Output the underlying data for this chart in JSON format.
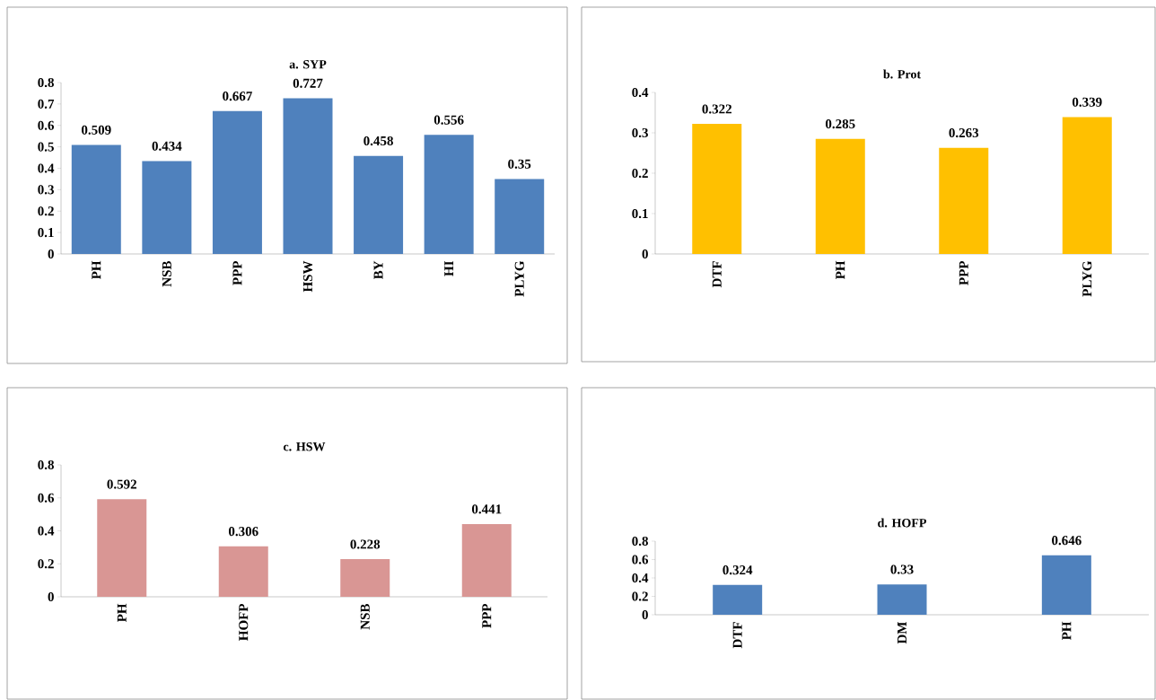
{
  "chart_data": [
    {
      "type": "bar",
      "title": "a. SYP",
      "categories": [
        "PH",
        "NSB",
        "PPP",
        "HSW",
        "BY",
        "HI",
        "PLYG"
      ],
      "values": [
        0.509,
        0.434,
        0.667,
        0.727,
        0.458,
        0.556,
        0.35
      ],
      "color": "#4f81bd",
      "ylim": [
        0,
        0.8
      ],
      "yticks": [
        0,
        0.1,
        0.2,
        0.3,
        0.4,
        0.5,
        0.6,
        0.7,
        0.8
      ],
      "data_labels": true
    },
    {
      "type": "bar",
      "title": "b. Prot",
      "categories": [
        "DTF",
        "PH",
        "PPP",
        "PLYG"
      ],
      "values": [
        0.322,
        0.285,
        0.263,
        0.339
      ],
      "color": "#ffc000",
      "ylim": [
        0,
        0.4
      ],
      "yticks": [
        0,
        0.1,
        0.2,
        0.3,
        0.4
      ],
      "data_labels": true
    },
    {
      "type": "bar",
      "title": "c. HSW",
      "categories": [
        "PH",
        "HOFP",
        "NSB",
        "PPP"
      ],
      "values": [
        0.592,
        0.306,
        0.228,
        0.441
      ],
      "color": "#d99694",
      "ylim": [
        0,
        0.8
      ],
      "yticks": [
        0,
        0.2,
        0.4,
        0.6,
        0.8
      ],
      "data_labels": true
    },
    {
      "type": "bar",
      "title": "d. HOFP",
      "categories": [
        "DTF",
        "DM",
        "PH"
      ],
      "values": [
        0.324,
        0.33,
        0.646
      ],
      "color": "#4f81bd",
      "ylim": [
        0,
        0.8
      ],
      "yticks": [
        0,
        0.2,
        0.4,
        0.6,
        0.8
      ],
      "data_labels": true
    }
  ]
}
